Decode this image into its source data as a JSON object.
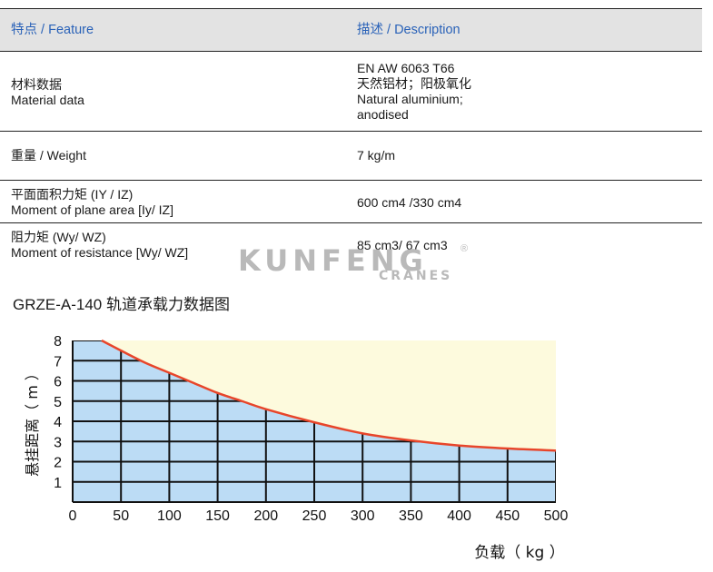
{
  "table": {
    "headers": [
      "特点 / Feature",
      "描述 / Description"
    ],
    "rows": [
      {
        "feature": [
          "材料数据",
          "Material data"
        ],
        "description": [
          "EN AW 6063 T66",
          "天然铝材；阳极氧化",
          "Natural aluminium;",
          "anodised"
        ]
      },
      {
        "feature": [
          "重量 / Weight"
        ],
        "description": [
          "7 kg/m"
        ]
      },
      {
        "feature": [
          "平面面积力矩 (IY / IZ)",
          "Moment of plane area [Iy/ IZ]"
        ],
        "description": [
          "600 cm4 /330 cm4"
        ]
      },
      {
        "feature": [
          "阻力矩 (Wy/ WZ)",
          "Moment of resistance [Wy/ WZ]"
        ],
        "description": [
          "85 cm3/ 67 cm3"
        ]
      }
    ]
  },
  "watermark": {
    "brand": "KUNFENG",
    "sub": "CRANES",
    "reg": "®"
  },
  "chart_data": {
    "type": "area",
    "title": "GRZE-A-140 轨道承载力数据图",
    "xlabel": "负载（ kg ）",
    "ylabel": "悬挂距离（ m ）",
    "xlim": [
      0,
      500
    ],
    "ylim": [
      0,
      8
    ],
    "x_ticks": [
      0,
      50,
      100,
      150,
      200,
      250,
      300,
      350,
      400,
      450,
      500
    ],
    "y_ticks": [
      1,
      2,
      3,
      4,
      5,
      6,
      7,
      8
    ],
    "grid": true,
    "series": [
      {
        "x": [
          30,
          50,
          75,
          100,
          125,
          150,
          175,
          200,
          250,
          300,
          350,
          400,
          450,
          500
        ],
        "y": [
          8.0,
          7.5,
          6.9,
          6.4,
          5.9,
          5.4,
          5.0,
          4.6,
          3.95,
          3.4,
          3.05,
          2.8,
          2.65,
          2.55
        ]
      }
    ],
    "colors": {
      "under": "#bcdcf5",
      "over": "#fdfadd",
      "curve": "#e8452a",
      "grid": "#111111"
    }
  }
}
